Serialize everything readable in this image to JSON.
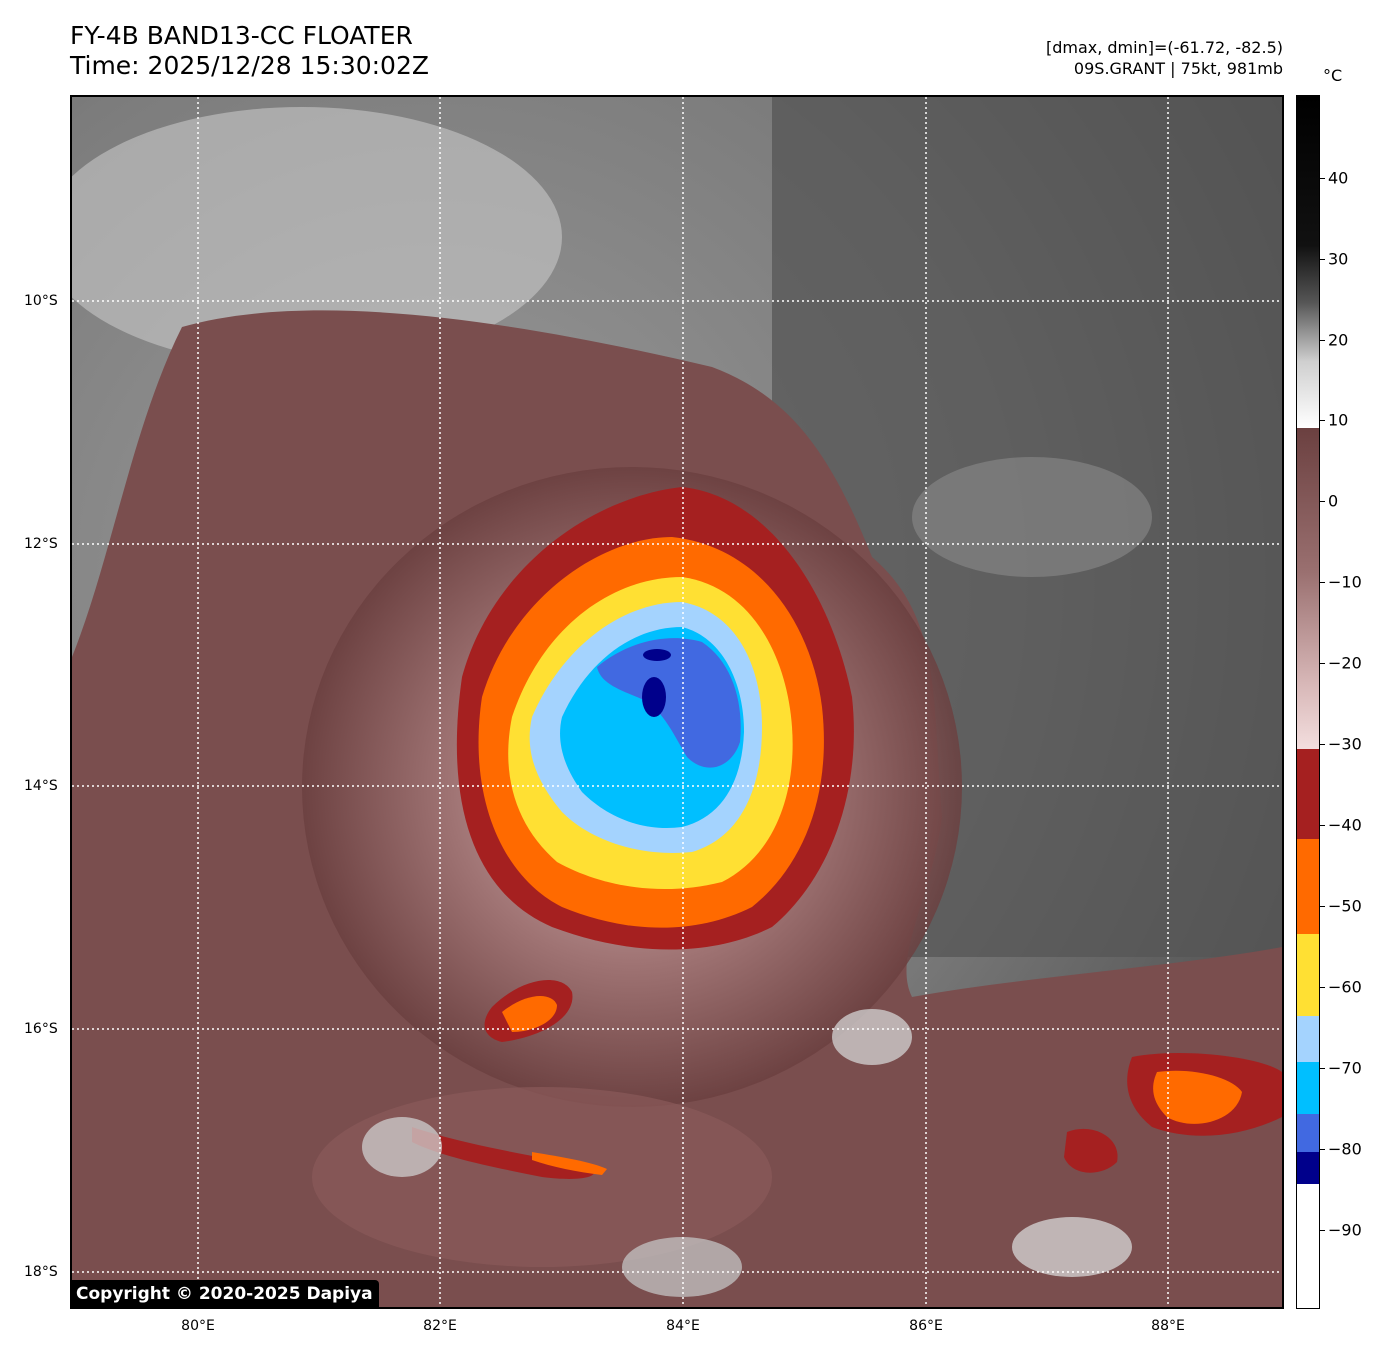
{
  "header": {
    "title": "FY-4B BAND13-CC FLOATER",
    "time": "Time: 2025/12/28 15:30:02Z",
    "range": "[dmax, dmin]=(-61.72, -82.5)",
    "storm": "09S.GRANT | 75kt, 981mb"
  },
  "map": {
    "lat_labels": [
      "10°S",
      "12°S",
      "14°S",
      "16°S",
      "18°S"
    ],
    "lon_labels": [
      "80°E",
      "82°E",
      "84°E",
      "86°E",
      "88°E"
    ],
    "grid_lines": "dotted white",
    "copyright": "Copyright © 2020-2025 Dapiya"
  },
  "colorbar": {
    "unit": "°C",
    "ticks": [
      "40",
      "30",
      "20",
      "10",
      "0",
      "−10",
      "−20",
      "−30",
      "−40",
      "−50",
      "−60",
      "−70",
      "−80",
      "−90"
    ],
    "colors": {
      "dark_blue": "#00008b",
      "royal_blue": "#4169e1",
      "deep_sky_blue": "#00bfff",
      "light_sky_blue": "#a4d3fe",
      "yellow": "#ffe033",
      "orange": "#ff6a00",
      "brick_red": "#a52020",
      "pink_brown": "#7a4e4e",
      "gray": "#6e6e6e"
    }
  }
}
